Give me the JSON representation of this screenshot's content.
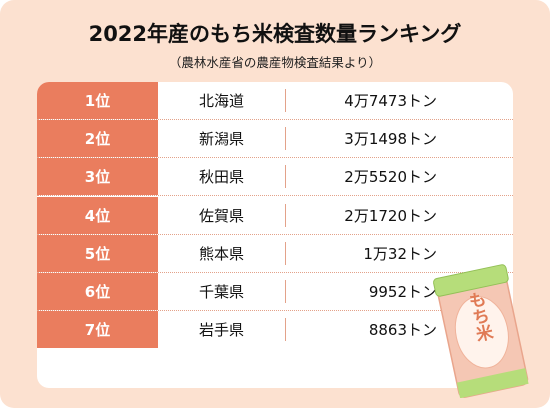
{
  "title": "2022年産のもち米検査数量ランキング",
  "subtitle": "（農林水産省の農産物検査結果より）",
  "illustration": {
    "label": "もち米",
    "colors": {
      "bag": "#f5c7b4",
      "band": "#b6dd7a",
      "text": "#e07a55"
    }
  },
  "colors": {
    "panel": "#fce1d0",
    "rank_cell": "#ea7d5e",
    "divider": "#e3a28a"
  },
  "chart_data": {
    "type": "table",
    "title": "2022年産のもち米検査数量ランキング",
    "subtitle": "（農林水産省の農産物検査結果より）",
    "unit": "トン",
    "rows": [
      {
        "rank": "1位",
        "prefecture": "北海道",
        "quantity_text": "4万7473トン",
        "value": 47473
      },
      {
        "rank": "2位",
        "prefecture": "新潟県",
        "quantity_text": "3万1498トン",
        "value": 31498
      },
      {
        "rank": "3位",
        "prefecture": "秋田県",
        "quantity_text": "2万5520トン",
        "value": 25520
      },
      {
        "rank": "4位",
        "prefecture": "佐賀県",
        "quantity_text": "2万1720トン",
        "value": 21720
      },
      {
        "rank": "5位",
        "prefecture": "熊本県",
        "quantity_text": "1万32トン",
        "value": 10032
      },
      {
        "rank": "6位",
        "prefecture": "千葉県",
        "quantity_text": "9952トン",
        "value": 9952
      },
      {
        "rank": "7位",
        "prefecture": "岩手県",
        "quantity_text": "8863トン",
        "value": 8863
      }
    ]
  }
}
